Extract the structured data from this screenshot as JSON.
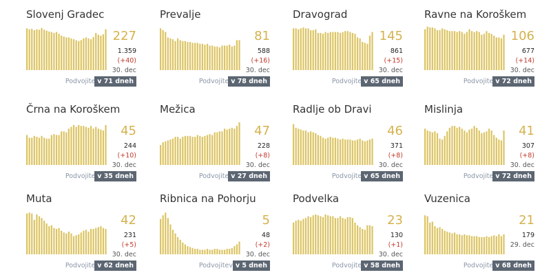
{
  "labels": {
    "doubling": "Podvojitev"
  },
  "colors": {
    "bar": "#dcc463",
    "big_number": "#d4b24c",
    "delta": "#c0392b",
    "badge": "#5c6672"
  },
  "chart_data": [
    {
      "type": "bar",
      "title": "Slovenj Gradec",
      "current": "227",
      "total": "1.359",
      "delta": "(+40)",
      "date": "30. dec",
      "doubling": "v 71 dneh",
      "values": [
        92,
        90,
        91,
        88,
        90,
        89,
        93,
        89,
        87,
        85,
        84,
        82,
        84,
        80,
        76,
        74,
        72,
        72,
        70,
        68,
        66,
        64,
        66,
        70,
        72,
        70,
        68,
        73,
        82,
        78,
        76,
        79,
        90
      ],
      "ylim": [
        0,
        100
      ]
    },
    {
      "type": "bar",
      "title": "Prevalje",
      "current": "81",
      "total": "588",
      "delta": "(+16)",
      "date": "30. dec",
      "doubling": "v 78 dneh",
      "values": [
        92,
        88,
        84,
        72,
        70,
        68,
        64,
        70,
        66,
        64,
        64,
        62,
        62,
        60,
        60,
        60,
        58,
        58,
        56,
        58,
        54,
        54,
        52,
        52,
        50,
        54,
        54,
        54,
        56,
        52,
        54,
        66,
        66
      ],
      "ylim": [
        0,
        100
      ]
    },
    {
      "type": "bar",
      "title": "Dravograd",
      "current": "145",
      "total": "861",
      "delta": "(+15)",
      "date": "30. dec",
      "doubling": "v 65 dneh",
      "values": [
        92,
        92,
        90,
        92,
        94,
        92,
        92,
        88,
        88,
        90,
        82,
        82,
        80,
        84,
        82,
        84,
        84,
        84,
        84,
        82,
        84,
        86,
        86,
        84,
        82,
        80,
        72,
        70,
        62,
        60,
        58,
        76,
        84
      ],
      "ylim": [
        0,
        100
      ]
    },
    {
      "type": "bar",
      "title": "Ravne na Koroškem",
      "current": "106",
      "total": "677",
      "delta": "(+14)",
      "date": "30. dec",
      "doubling": "v 72 dneh",
      "values": [
        90,
        96,
        94,
        94,
        92,
        88,
        88,
        92,
        90,
        88,
        86,
        86,
        86,
        84,
        86,
        84,
        80,
        84,
        90,
        86,
        84,
        86,
        84,
        78,
        80,
        86,
        82,
        80,
        76,
        72,
        72,
        70,
        78
      ],
      "ylim": [
        0,
        100
      ]
    },
    {
      "type": "bar",
      "title": "Črna na Koroškem",
      "current": "45",
      "total": "244",
      "delta": "(+10)",
      "date": "30. dec",
      "doubling": "v 35 dneh",
      "values": [
        66,
        60,
        60,
        64,
        62,
        60,
        64,
        60,
        58,
        58,
        66,
        68,
        66,
        66,
        74,
        74,
        72,
        80,
        84,
        88,
        84,
        88,
        86,
        86,
        84,
        82,
        86,
        80,
        84,
        80,
        78,
        76,
        88
      ],
      "ylim": [
        0,
        100
      ]
    },
    {
      "type": "bar",
      "title": "Mežica",
      "current": "47",
      "total": "228",
      "delta": "(+8)",
      "date": "30. dec",
      "doubling": "v 27 dneh",
      "values": [
        44,
        50,
        52,
        54,
        56,
        58,
        62,
        62,
        58,
        62,
        64,
        64,
        64,
        62,
        62,
        66,
        64,
        62,
        64,
        66,
        68,
        66,
        72,
        72,
        74,
        74,
        80,
        78,
        80,
        82,
        80,
        86,
        94
      ],
      "ylim": [
        0,
        100
      ]
    },
    {
      "type": "bar",
      "title": "Radlje ob Dravi",
      "current": "46",
      "total": "371",
      "delta": "(+8)",
      "date": "30. dec",
      "doubling": "v 65 dneh",
      "values": [
        90,
        82,
        80,
        78,
        76,
        76,
        72,
        74,
        72,
        70,
        66,
        64,
        60,
        58,
        60,
        62,
        60,
        60,
        58,
        56,
        58,
        56,
        56,
        56,
        54,
        54,
        56,
        58,
        54,
        52,
        54,
        56,
        58
      ],
      "ylim": [
        0,
        100
      ]
    },
    {
      "type": "bar",
      "title": "Mislinja",
      "current": "41",
      "total": "307",
      "delta": "(+8)",
      "date": "30. dec",
      "doubling": "v 72 dneh",
      "values": [
        80,
        76,
        74,
        72,
        74,
        70,
        58,
        56,
        64,
        74,
        82,
        86,
        86,
        82,
        84,
        80,
        76,
        72,
        78,
        80,
        86,
        82,
        76,
        70,
        72,
        74,
        80,
        76,
        66,
        60,
        56,
        54,
        76
      ],
      "ylim": [
        0,
        100
      ]
    },
    {
      "type": "bar",
      "title": "Muta",
      "current": "42",
      "total": "231",
      "delta": "(+5)",
      "date": "30. dec",
      "doubling": "v 62 dneh",
      "values": [
        90,
        92,
        90,
        76,
        88,
        84,
        80,
        74,
        68,
        62,
        64,
        58,
        56,
        58,
        52,
        48,
        46,
        50,
        46,
        40,
        42,
        44,
        48,
        52,
        54,
        50,
        56,
        56,
        58,
        60,
        62,
        58,
        56
      ],
      "ylim": [
        0,
        100
      ]
    },
    {
      "type": "bar",
      "title": "Ribnica na Pohorju",
      "current": "5",
      "total": "48",
      "delta": "(+2)",
      "date": "30. dec",
      "doubling": "v 5 dneh",
      "values": [
        78,
        86,
        92,
        80,
        66,
        54,
        46,
        38,
        32,
        26,
        22,
        18,
        16,
        14,
        12,
        12,
        10,
        10,
        10,
        12,
        10,
        10,
        12,
        12,
        10,
        10,
        10,
        12,
        12,
        14,
        18,
        22,
        28
      ],
      "ylim": [
        0,
        100
      ]
    },
    {
      "type": "bar",
      "title": "Podvelka",
      "current": "23",
      "total": "130",
      "delta": "(+1)",
      "date": "30. dec",
      "doubling": "v 58 dneh",
      "values": [
        70,
        74,
        76,
        74,
        78,
        80,
        84,
        82,
        86,
        88,
        86,
        84,
        82,
        88,
        86,
        84,
        84,
        80,
        80,
        84,
        80,
        78,
        82,
        82,
        80,
        70,
        64,
        60,
        56,
        54,
        64,
        64,
        62
      ],
      "ylim": [
        0,
        100
      ]
    },
    {
      "type": "bar",
      "title": "Vuzenica",
      "current": "21",
      "total": "179",
      "delta": "",
      "date": "29. dec",
      "doubling": "v 68 dneh",
      "values": [
        86,
        84,
        70,
        72,
        62,
        58,
        60,
        56,
        52,
        50,
        48,
        46,
        48,
        44,
        44,
        42,
        44,
        42,
        42,
        40,
        40,
        40,
        38,
        38,
        38,
        40,
        38,
        40,
        42,
        40,
        44,
        40,
        44
      ],
      "ylim": [
        0,
        100
      ]
    }
  ]
}
